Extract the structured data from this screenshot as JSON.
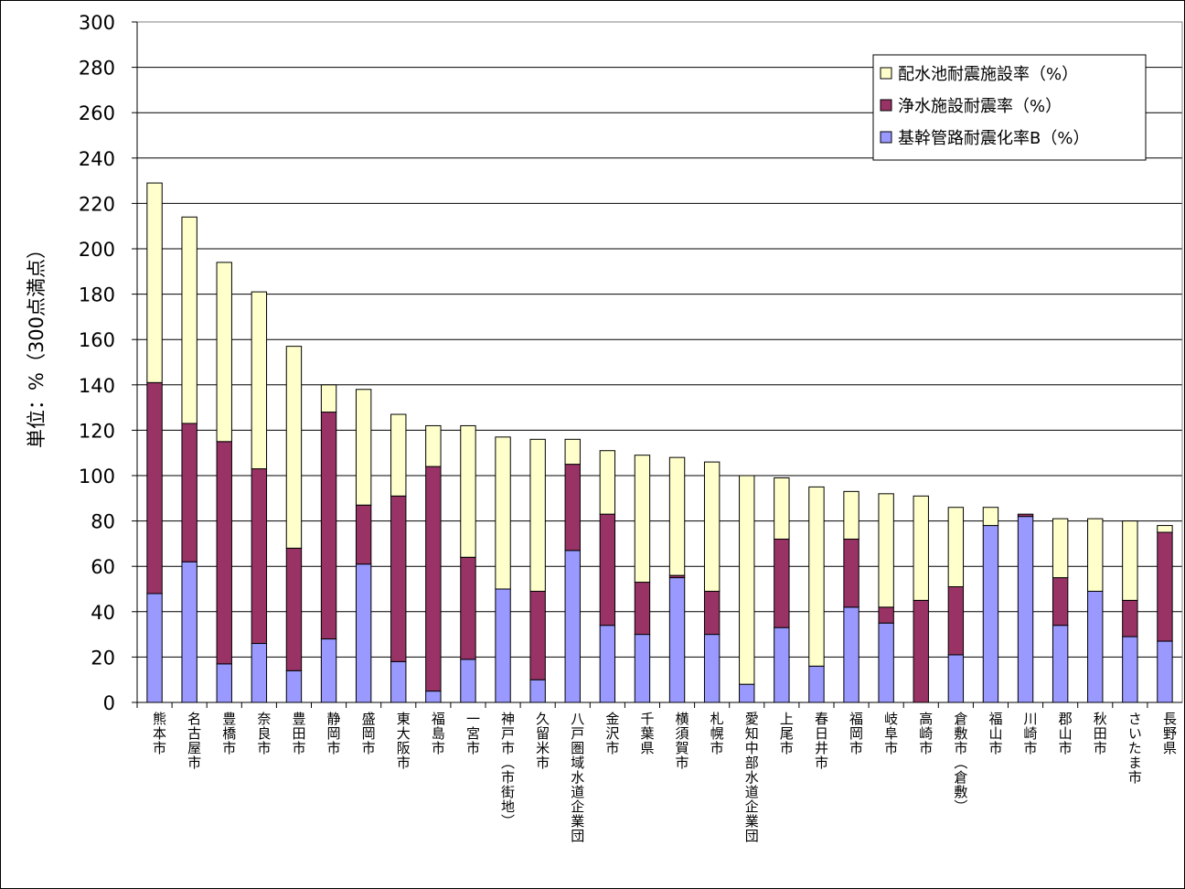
{
  "chart_data": {
    "type": "bar",
    "stacked": true,
    "title": "",
    "xlabel": "",
    "ylabel": "単位：%（300点満点）",
    "ylim": [
      0,
      300
    ],
    "y_ticks": [
      0,
      20,
      40,
      60,
      80,
      100,
      120,
      140,
      160,
      180,
      200,
      220,
      240,
      260,
      280,
      300
    ],
    "grid": true,
    "legend_position": "top-right",
    "categories": [
      "熊本市",
      "名古屋市",
      "豊橋市",
      "奈良市",
      "豊田市",
      "静岡市",
      "盛岡市",
      "東大阪市",
      "福島市",
      "一宮市",
      "神戸市（市街地）",
      "久留米市",
      "八戸圏域水道企業団",
      "金沢市",
      "千葉県",
      "横須賀市",
      "札幌市",
      "愛知中部水道企業団",
      "上尾市",
      "春日井市",
      "福岡市",
      "岐阜市",
      "高崎市",
      "倉敷市（倉敷）",
      "福山市",
      "川崎市",
      "郡山市",
      "秋田市",
      "さいたま市",
      "長野県"
    ],
    "series": [
      {
        "name": "基幹管路耐震化率B（%）",
        "color": "#9999ff",
        "values": [
          48,
          62,
          17,
          26,
          14,
          28,
          61,
          18,
          5,
          19,
          50,
          10,
          67,
          34,
          30,
          55,
          30,
          8,
          33,
          16,
          42,
          35,
          0,
          21,
          78,
          82,
          34,
          49,
          29,
          27
        ]
      },
      {
        "name": "浄水施設耐震率（%）",
        "color": "#993366",
        "values": [
          93,
          61,
          98,
          77,
          54,
          100,
          26,
          73,
          99,
          45,
          0,
          39,
          38,
          49,
          23,
          1,
          19,
          0,
          39,
          0,
          30,
          7,
          45,
          30,
          0,
          1,
          21,
          0,
          16,
          48
        ]
      },
      {
        "name": "配水池耐震施設率（%）",
        "color": "#ffffcc",
        "values": [
          88,
          91,
          79,
          78,
          89,
          12,
          51,
          36,
          18,
          58,
          67,
          67,
          11,
          28,
          56,
          52,
          57,
          92,
          27,
          79,
          21,
          50,
          46,
          35,
          8,
          0,
          26,
          32,
          35,
          3
        ]
      }
    ]
  }
}
